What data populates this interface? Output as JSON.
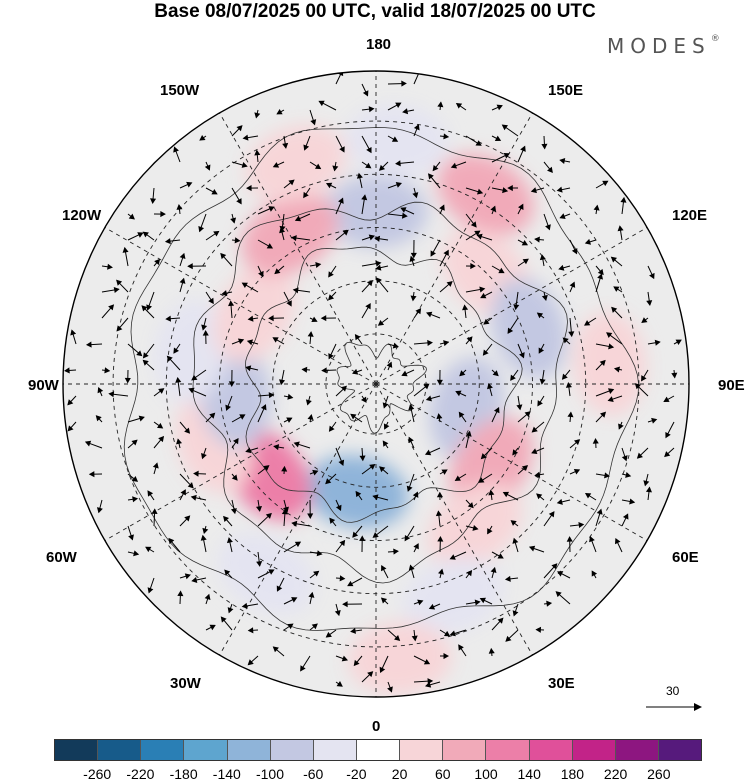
{
  "title": "Base 08/07/2025 00 UTC, valid 18/07/2025 00 UTC",
  "brand": "MODES",
  "brand_mark": "®",
  "longitude_labels": {
    "top": "180",
    "bottom": "0",
    "left": "90W",
    "right": "90E",
    "upper_left_outer": "150W",
    "upper_right_outer": "150E",
    "upper_left_inner": "120W",
    "upper_right_inner": "120E",
    "lower_left_inner": "60W",
    "lower_right_inner": "60E",
    "lower_left_outer": "30W",
    "lower_right_outer": "30E"
  },
  "vector_reference": {
    "value": "30"
  },
  "colorbar": {
    "colors": [
      "#123a5a",
      "#175b8a",
      "#2a7fb5",
      "#5ea5cf",
      "#8fb4d9",
      "#c3c8e2",
      "#e4e4f1",
      "#ffffff",
      "#f7d5d8",
      "#f1aab9",
      "#ec7fa8",
      "#e0509a",
      "#c22388",
      "#8d1680",
      "#561a7c"
    ],
    "ticks": [
      "-260",
      "-220",
      "-180",
      "-140",
      "-100",
      "-60",
      "-20",
      "20",
      "60",
      "100",
      "140",
      "180",
      "220",
      "260"
    ]
  },
  "anomaly_colors": {
    "neg_weak": "#e4e4f1",
    "neg_mod": "#c3c8e2",
    "neg_strong": "#8fb4d9",
    "pos_weak": "#f7d5d8",
    "pos_mod": "#f1aab9",
    "pos_strong": "#ec7fa8",
    "background": "#ececec"
  },
  "anomaly_patches": [
    {
      "lon": 180,
      "r": 0.55,
      "tone": "neg_mod"
    },
    {
      "lon": 175,
      "r": 0.78,
      "tone": "neg_weak"
    },
    {
      "lon": 150,
      "r": 0.7,
      "tone": "pos_mod"
    },
    {
      "lon": 135,
      "r": 0.5,
      "tone": "pos_weak"
    },
    {
      "lon": 110,
      "r": 0.52,
      "tone": "neg_mod"
    },
    {
      "lon": 95,
      "r": 0.75,
      "tone": "pos_weak"
    },
    {
      "lon": 75,
      "r": 0.3,
      "tone": "neg_mod"
    },
    {
      "lon": 55,
      "r": 0.45,
      "tone": "pos_mod"
    },
    {
      "lon": 35,
      "r": 0.55,
      "tone": "pos_weak"
    },
    {
      "lon": 20,
      "r": 0.72,
      "tone": "neg_weak"
    },
    {
      "lon": 5,
      "r": 0.88,
      "tone": "pos_weak"
    },
    {
      "lon": -10,
      "r": 0.35,
      "tone": "neg_strong"
    },
    {
      "lon": -30,
      "r": 0.7,
      "tone": "neg_weak"
    },
    {
      "lon": -50,
      "r": 0.45,
      "tone": "pos_strong"
    },
    {
      "lon": -70,
      "r": 0.55,
      "tone": "pos_weak"
    },
    {
      "lon": -85,
      "r": 0.45,
      "tone": "neg_mod"
    },
    {
      "lon": -100,
      "r": 0.6,
      "tone": "neg_weak"
    },
    {
      "lon": -120,
      "r": 0.45,
      "tone": "pos_weak"
    },
    {
      "lon": -150,
      "r": 0.55,
      "tone": "pos_mod"
    },
    {
      "lon": -160,
      "r": 0.75,
      "tone": "pos_weak"
    }
  ]
}
